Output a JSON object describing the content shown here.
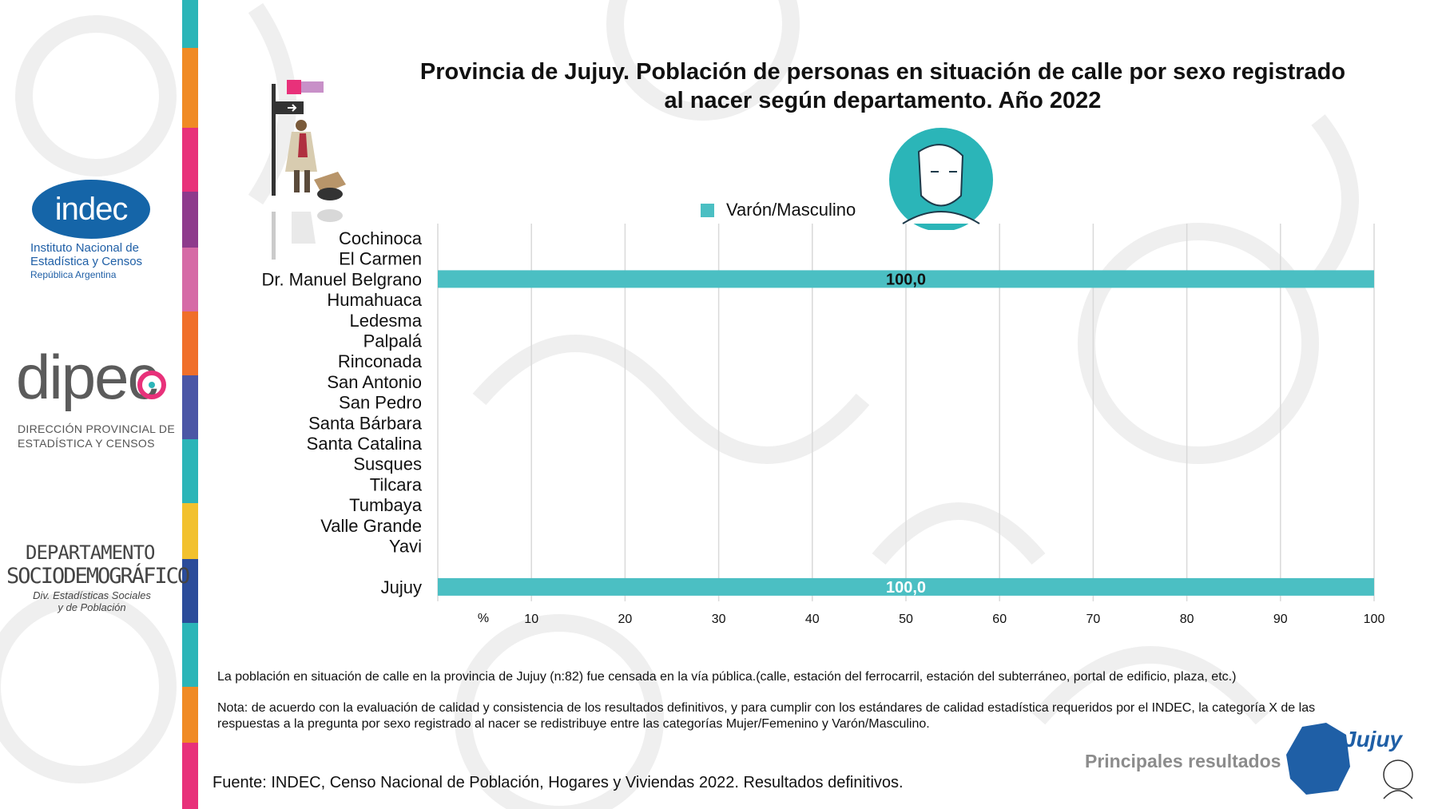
{
  "branding": {
    "indec_logo": "indec",
    "indec_sub_1": "Instituto Nacional de",
    "indec_sub_2": "Estadística y Censos",
    "indec_sub_3": "República Argentina",
    "dipec_logo": "dipec",
    "dipec_sub_1": "DIRECCIÓN PROVINCIAL DE",
    "dipec_sub_2": "ESTADÍSTICA Y CENSOS",
    "depto_1": "DEPARTAMENTO",
    "depto_2": "SOCIODEMOGRÁFICO",
    "depto_3": "Div. Estadísticas Sociales",
    "depto_4": "y de Población",
    "jujuy_logo": "Jujuy",
    "principales": "Principales resultados"
  },
  "chart_data": {
    "type": "bar",
    "orientation": "horizontal",
    "title": "Provincia de Jujuy. Población de personas en situación de calle por sexo registrado al nacer según departamento. Año 2022",
    "title_line1": "Provincia de Jujuy. Población de personas en situación de calle por sexo registrado",
    "title_line2": "al nacer según departamento. Año 2022",
    "categories": [
      "Cochinoca",
      "El Carmen",
      "Dr. Manuel Belgrano",
      "Humahuaca",
      "Ledesma",
      "Palpalá",
      "Rinconada",
      "San Antonio",
      "San Pedro",
      "Santa Bárbara",
      "Santa Catalina",
      "Susques",
      "Tilcara",
      "Tumbaya",
      "Valle Grande",
      "Yavi",
      "",
      "Jujuy"
    ],
    "series": [
      {
        "name": "Varón/Masculino",
        "color": "#4bbfc3",
        "values": [
          null,
          null,
          100.0,
          null,
          null,
          null,
          null,
          null,
          null,
          null,
          null,
          null,
          null,
          null,
          null,
          null,
          null,
          100.0
        ],
        "labels": [
          "",
          "",
          "100,0",
          "",
          "",
          "",
          "",
          "",
          "",
          "",
          "",
          "",
          "",
          "",
          "",
          "",
          "",
          "100,0"
        ],
        "label_colors": [
          "",
          "",
          "#111111",
          "",
          "",
          "",
          "",
          "",
          "",
          "",
          "",
          "",
          "",
          "",
          "",
          "",
          "",
          "#ffffff"
        ]
      }
    ],
    "xlim": [
      0,
      100
    ],
    "xticks": [
      10,
      20,
      30,
      40,
      50,
      60,
      70,
      80,
      90,
      100
    ],
    "xunit_label": "%",
    "grid": true,
    "legend": "top-center"
  },
  "notes": {
    "note1": "La población en situación de calle en la provincia de Jujuy (n:82) fue  censada en la vía pública.(calle, estación del ferrocarril, estación del subterráneo, portal de edificio, plaza, etc.)",
    "note2_line1": "Nota: de acuerdo con la evaluación de calidad y consistencia de los resultados definitivos, y para cumplir con los estándares de calidad estadística requeridos por el INDEC, la categoría X de las",
    "note2_line2": "respuestas a la pregunta por sexo registrado al nacer se redistribuye entre las categorías Mujer/Femenino y Varón/Masculino.",
    "source": "Fuente: INDEC, Censo Nacional de Población, Hogares y Viviendas 2022. Resultados definitivos."
  },
  "colors": {
    "bar": "#4bbfc3",
    "grid": "#d9d9d9",
    "indec_blue": "#1565a8",
    "gray_text": "#8c8c8c"
  }
}
